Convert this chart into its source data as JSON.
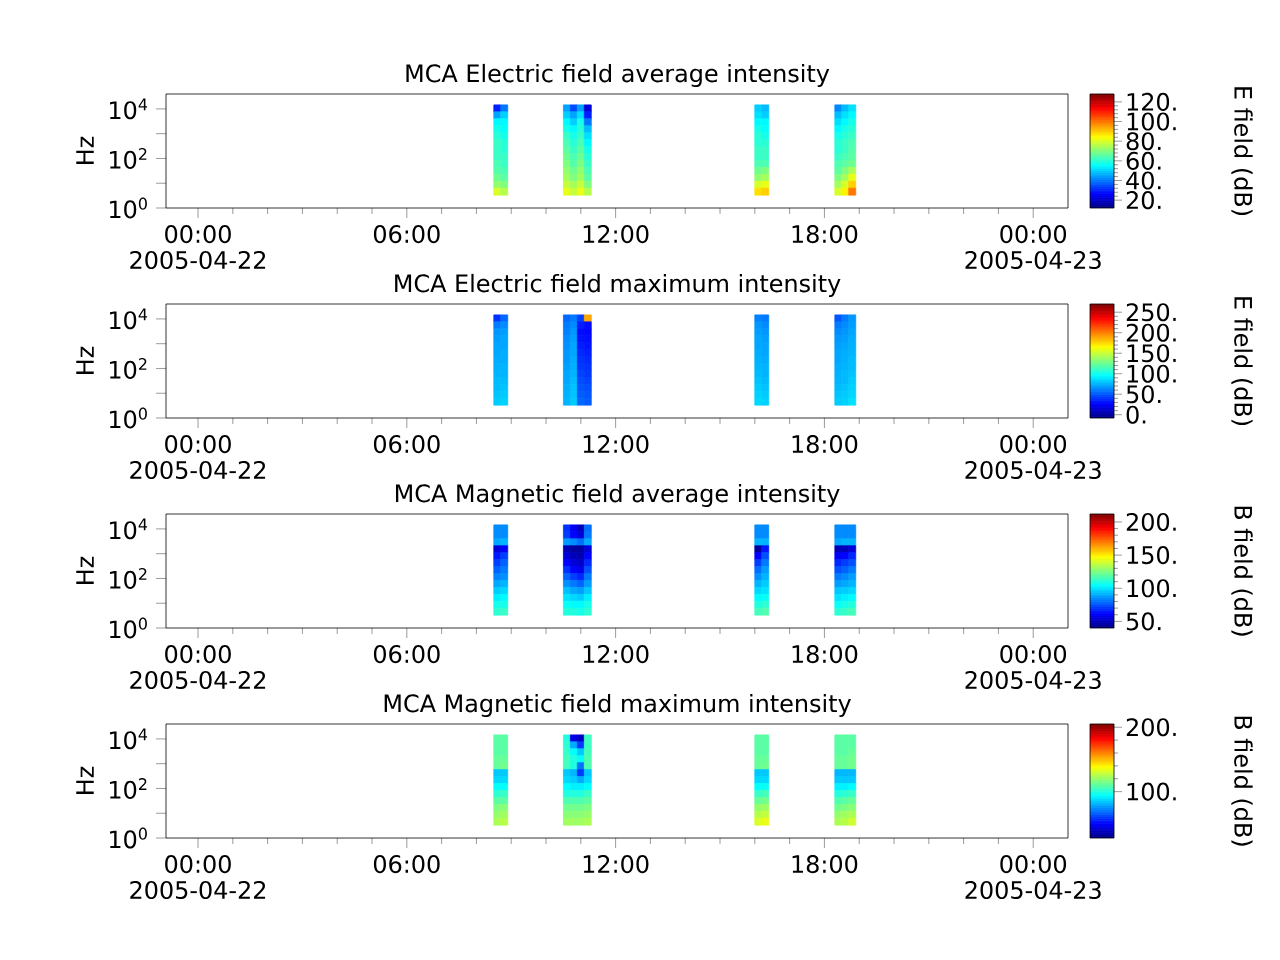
{
  "chart_data": [
    {
      "type": "scatter",
      "marker": "square",
      "title": "MCA  Electric field average intensity",
      "ylabel": "Hz",
      "clabel": "E field (dB)",
      "log": true,
      "x": [
        8.6,
        8.8,
        10.6,
        10.8,
        11.0,
        11.2,
        16.1,
        16.3,
        18.4,
        18.6,
        18.8,
        8.6,
        8.8,
        10.6,
        10.8,
        11.0,
        11.2,
        16.1,
        16.3,
        18.4,
        18.6,
        18.8,
        8.6,
        8.8,
        10.6,
        10.8,
        11.0,
        11.2,
        16.1,
        16.3,
        18.4,
        18.6,
        18.8,
        8.6,
        8.8,
        10.6,
        10.8,
        11.0,
        11.2,
        16.1,
        16.3,
        18.4,
        18.6,
        18.8,
        8.6,
        8.8,
        10.6,
        10.8,
        11.0,
        11.2,
        16.1,
        16.3,
        18.4,
        18.6,
        18.8,
        8.6,
        8.8,
        10.6,
        10.8,
        11.0,
        11.2,
        16.1,
        16.3,
        18.4,
        18.6,
        18.8,
        8.6,
        8.8,
        10.6,
        10.8,
        11.0,
        11.2,
        16.1,
        16.3,
        18.4,
        18.6,
        18.8,
        8.6,
        8.8,
        10.6,
        10.8,
        11.0,
        11.2,
        16.1,
        16.3,
        18.4,
        18.6,
        18.8,
        8.6,
        8.8,
        10.6,
        10.8,
        11.0,
        11.2,
        16.1,
        16.3,
        18.4,
        18.6,
        18.8,
        8.6,
        8.8,
        10.6,
        10.8,
        11.0,
        11.2,
        16.1,
        16.3,
        18.4,
        18.6,
        18.8,
        8.6,
        8.8,
        10.6,
        10.8,
        11.0,
        11.2,
        16.1,
        16.3,
        18.4,
        18.6,
        18.8,
        8.6,
        8.8,
        10.6,
        10.8,
        11.0,
        11.2,
        16.1,
        16.3,
        18.4,
        18.6,
        18.8,
        8.6,
        8.8,
        10.6,
        10.8,
        11.0,
        11.2,
        16.1,
        16.3,
        18.4,
        18.6,
        18.8
      ],
      "values": [
        10500,
        10500,
        10500,
        10500,
        10500,
        10500,
        10500,
        10500,
        10500,
        10500,
        10500,
        5500,
        5500,
        5500,
        5500,
        5500,
        5500,
        5500,
        5500,
        5500,
        5500,
        5500,
        2880,
        2880,
        2880,
        2880,
        2880,
        2880,
        2880,
        2880,
        2880,
        2880,
        2880,
        1510,
        1510,
        1510,
        1510,
        1510,
        1510,
        1510,
        1510,
        1510,
        1510,
        1510,
        794,
        794,
        794,
        794,
        794,
        794,
        794,
        794,
        794,
        794,
        794,
        417,
        417,
        417,
        417,
        417,
        417,
        417,
        417,
        417,
        417,
        417,
        219,
        219,
        219,
        219,
        219,
        219,
        219,
        219,
        219,
        219,
        219,
        115,
        115,
        115,
        115,
        115,
        115,
        115,
        115,
        115,
        115,
        115,
        60.3,
        60.3,
        60.3,
        60.3,
        60.3,
        60.3,
        60.3,
        60.3,
        60.3,
        60.3,
        60.3,
        31.6,
        31.6,
        31.6,
        31.6,
        31.6,
        31.6,
        31.6,
        31.6,
        31.6,
        31.6,
        31.6,
        16.6,
        16.6,
        16.6,
        16.6,
        16.6,
        16.6,
        16.6,
        16.6,
        16.6,
        16.6,
        16.6,
        8.71,
        8.71,
        8.71,
        8.71,
        8.71,
        8.71,
        8.71,
        8.71,
        8.71,
        8.71,
        8.71,
        4.57,
        4.57,
        4.57,
        4.57,
        4.57,
        4.57,
        4.57,
        4.57,
        4.57,
        4.57,
        4.57
      ],
      "cvalues": [
        30,
        40,
        45,
        35,
        45,
        22,
        50,
        48,
        42,
        48,
        52,
        45,
        50,
        50,
        45,
        52,
        30,
        52,
        50,
        48,
        52,
        55,
        55,
        55,
        55,
        50,
        58,
        40,
        55,
        55,
        52,
        55,
        58,
        58,
        56,
        58,
        55,
        60,
        48,
        58,
        56,
        55,
        58,
        60,
        60,
        58,
        62,
        58,
        62,
        52,
        60,
        58,
        58,
        60,
        62,
        62,
        60,
        64,
        60,
        64,
        55,
        60,
        60,
        60,
        62,
        64,
        62,
        60,
        66,
        62,
        66,
        58,
        62,
        62,
        60,
        62,
        65,
        62,
        62,
        68,
        64,
        68,
        60,
        62,
        62,
        62,
        64,
        66,
        64,
        62,
        70,
        65,
        70,
        62,
        64,
        64,
        64,
        66,
        68,
        65,
        64,
        72,
        68,
        72,
        64,
        68,
        70,
        66,
        70,
        75,
        68,
        66,
        74,
        70,
        74,
        66,
        72,
        74,
        70,
        74,
        82,
        72,
        70,
        78,
        74,
        78,
        70,
        80,
        82,
        74,
        80,
        90,
        80,
        76,
        82,
        78,
        82,
        76,
        88,
        90,
        80,
        86,
        100
      ],
      "xlim": [
        -0.92,
        25.0
      ],
      "ylim": [
        1,
        40000
      ],
      "xticks": [
        {
          "value": 0,
          "label": "00:00 2005-04-22"
        },
        {
          "value": 6,
          "label": "06:00"
        },
        {
          "value": 12,
          "label": "12:00"
        },
        {
          "value": 18,
          "label": "18:00"
        },
        {
          "value": 24,
          "label": "00:00 2005-04-23"
        }
      ],
      "yticks": [
        {
          "value": 1,
          "label": "10$^{0}$"
        },
        {
          "value": 10,
          "label": null
        },
        {
          "value": 100,
          "label": "10$^{2}$"
        },
        {
          "value": 1000,
          "label": null
        },
        {
          "value": 10000,
          "label": "10$^{4}$"
        }
      ],
      "clim": [
        12,
        128
      ],
      "cticks": [
        {
          "value": 20,
          "label": "20."
        },
        {
          "value": 40,
          "label": "40."
        },
        {
          "value": 60,
          "label": "60."
        },
        {
          "value": 80,
          "label": "80."
        },
        {
          "value": 100,
          "label": "100."
        },
        {
          "value": 120,
          "label": "120."
        }
      ]
    },
    {
      "type": "scatter",
      "marker": "square",
      "title": "MCA  Electric field maximum intensity",
      "ylabel": "Hz",
      "clabel": "E field (dB)",
      "log": true,
      "x": [
        8.6,
        8.8,
        10.6,
        10.8,
        11.0,
        11.2,
        16.1,
        16.3,
        18.4,
        18.6,
        18.8,
        8.6,
        8.8,
        10.6,
        10.8,
        11.0,
        11.2,
        16.1,
        16.3,
        18.4,
        18.6,
        18.8,
        8.6,
        8.8,
        10.6,
        10.8,
        11.0,
        11.2,
        16.1,
        16.3,
        18.4,
        18.6,
        18.8,
        8.6,
        8.8,
        10.6,
        10.8,
        11.0,
        11.2,
        16.1,
        16.3,
        18.4,
        18.6,
        18.8,
        8.6,
        8.8,
        10.6,
        10.8,
        11.0,
        11.2,
        16.1,
        16.3,
        18.4,
        18.6,
        18.8,
        8.6,
        8.8,
        10.6,
        10.8,
        11.0,
        11.2,
        16.1,
        16.3,
        18.4,
        18.6,
        18.8,
        8.6,
        8.8,
        10.6,
        10.8,
        11.0,
        11.2,
        16.1,
        16.3,
        18.4,
        18.6,
        18.8,
        8.6,
        8.8,
        10.6,
        10.8,
        11.0,
        11.2,
        16.1,
        16.3,
        18.4,
        18.6,
        18.8,
        8.6,
        8.8,
        10.6,
        10.8,
        11.0,
        11.2,
        16.1,
        16.3,
        18.4,
        18.6,
        18.8,
        8.6,
        8.8,
        10.6,
        10.8,
        11.0,
        11.2,
        16.1,
        16.3,
        18.4,
        18.6,
        18.8,
        8.6,
        8.8,
        10.6,
        10.8,
        11.0,
        11.2,
        16.1,
        16.3,
        18.4,
        18.6,
        18.8,
        8.6,
        8.8,
        10.6,
        10.8,
        11.0,
        11.2,
        16.1,
        16.3,
        18.4,
        18.6,
        18.8,
        8.6,
        8.8,
        10.6,
        10.8,
        11.0,
        11.2,
        16.1,
        16.3,
        18.4,
        18.6,
        18.8
      ],
      "values": [
        10500,
        10500,
        10500,
        10500,
        10500,
        10500,
        10500,
        10500,
        10500,
        10500,
        10500,
        5500,
        5500,
        5500,
        5500,
        5500,
        5500,
        5500,
        5500,
        5500,
        5500,
        5500,
        2880,
        2880,
        2880,
        2880,
        2880,
        2880,
        2880,
        2880,
        2880,
        2880,
        2880,
        1510,
        1510,
        1510,
        1510,
        1510,
        1510,
        1510,
        1510,
        1510,
        1510,
        1510,
        794,
        794,
        794,
        794,
        794,
        794,
        794,
        794,
        794,
        794,
        794,
        417,
        417,
        417,
        417,
        417,
        417,
        417,
        417,
        417,
        417,
        417,
        219,
        219,
        219,
        219,
        219,
        219,
        219,
        219,
        219,
        219,
        219,
        115,
        115,
        115,
        115,
        115,
        115,
        115,
        115,
        115,
        115,
        115,
        60.3,
        60.3,
        60.3,
        60.3,
        60.3,
        60.3,
        60.3,
        60.3,
        60.3,
        60.3,
        60.3,
        31.6,
        31.6,
        31.6,
        31.6,
        31.6,
        31.6,
        31.6,
        31.6,
        31.6,
        31.6,
        31.6,
        16.6,
        16.6,
        16.6,
        16.6,
        16.6,
        16.6,
        16.6,
        16.6,
        16.6,
        16.6,
        16.6,
        8.71,
        8.71,
        8.71,
        8.71,
        8.71,
        8.71,
        8.71,
        8.71,
        8.71,
        8.71,
        8.71,
        4.57,
        4.57,
        4.57,
        4.57,
        4.57,
        4.57,
        4.57,
        4.57,
        4.57,
        4.57,
        4.57
      ],
      "cvalues": [
        40,
        55,
        55,
        60,
        45,
        190,
        62,
        60,
        50,
        60,
        68,
        60,
        65,
        60,
        65,
        35,
        30,
        68,
        65,
        60,
        65,
        70,
        68,
        70,
        62,
        68,
        30,
        28,
        70,
        68,
        65,
        68,
        72,
        70,
        72,
        65,
        70,
        32,
        30,
        72,
        70,
        68,
        70,
        74,
        72,
        72,
        66,
        72,
        35,
        32,
        72,
        72,
        70,
        72,
        75,
        72,
        74,
        68,
        72,
        38,
        35,
        74,
        72,
        72,
        74,
        76,
        74,
        74,
        68,
        74,
        40,
        38,
        75,
        74,
        72,
        75,
        78,
        75,
        76,
        70,
        75,
        42,
        40,
        76,
        76,
        74,
        76,
        78,
        76,
        76,
        72,
        76,
        45,
        42,
        78,
        76,
        75,
        78,
        80,
        78,
        78,
        72,
        78,
        48,
        45,
        80,
        78,
        76,
        78,
        82,
        78,
        80,
        74,
        80,
        50,
        48,
        82,
        80,
        78,
        80,
        84,
        80,
        82,
        75,
        80,
        52,
        50,
        84,
        82,
        80,
        82,
        85,
        82,
        84,
        76,
        82,
        55,
        52,
        86,
        84,
        82,
        84,
        88
      ],
      "xlim": [
        -0.92,
        25.0
      ],
      "ylim": [
        1,
        40000
      ],
      "xticks": [
        {
          "value": 0,
          "label": "00:00 2005-04-22"
        },
        {
          "value": 6,
          "label": "06:00"
        },
        {
          "value": 12,
          "label": "12:00"
        },
        {
          "value": 18,
          "label": "18:00"
        },
        {
          "value": 24,
          "label": "00:00 2005-04-23"
        }
      ],
      "yticks": [
        {
          "value": 1,
          "label": "10$^{0}$"
        },
        {
          "value": 10,
          "label": null
        },
        {
          "value": 100,
          "label": "10$^{2}$"
        },
        {
          "value": 1000,
          "label": null
        },
        {
          "value": 10000,
          "label": "10$^{4}$"
        }
      ],
      "clim": [
        -8,
        270
      ],
      "cticks": [
        {
          "value": 0,
          "label": "0."
        },
        {
          "value": 50,
          "label": "50."
        },
        {
          "value": 100,
          "label": "100."
        },
        {
          "value": 150,
          "label": "150."
        },
        {
          "value": 200,
          "label": "200."
        },
        {
          "value": 250,
          "label": "250."
        }
      ]
    },
    {
      "type": "scatter",
      "marker": "square",
      "title": "MCA  Magnetic field average intensity",
      "ylabel": "Hz",
      "clabel": "B field (dB)",
      "log": true,
      "x": [
        8.6,
        8.8,
        10.6,
        10.8,
        11.0,
        11.2,
        16.1,
        16.3,
        18.4,
        18.6,
        18.8,
        8.6,
        8.8,
        10.6,
        10.8,
        11.0,
        11.2,
        16.1,
        16.3,
        18.4,
        18.6,
        18.8,
        8.6,
        8.8,
        10.6,
        10.8,
        11.0,
        11.2,
        16.1,
        16.3,
        18.4,
        18.6,
        18.8,
        8.6,
        8.8,
        10.6,
        10.8,
        11.0,
        11.2,
        16.1,
        16.3,
        18.4,
        18.6,
        18.8,
        8.6,
        8.8,
        10.6,
        10.8,
        11.0,
        11.2,
        16.1,
        16.3,
        18.4,
        18.6,
        18.8,
        8.6,
        8.8,
        10.6,
        10.8,
        11.0,
        11.2,
        16.1,
        16.3,
        18.4,
        18.6,
        18.8,
        8.6,
        8.8,
        10.6,
        10.8,
        11.0,
        11.2,
        16.1,
        16.3,
        18.4,
        18.6,
        18.8,
        8.6,
        8.8,
        10.6,
        10.8,
        11.0,
        11.2,
        16.1,
        16.3,
        18.4,
        18.6,
        18.8,
        8.6,
        8.8,
        10.6,
        10.8,
        11.0,
        11.2,
        16.1,
        16.3,
        18.4,
        18.6,
        18.8,
        8.6,
        8.8,
        10.6,
        10.8,
        11.0,
        11.2,
        16.1,
        16.3,
        18.4,
        18.6,
        18.8,
        8.6,
        8.8,
        10.6,
        10.8,
        11.0,
        11.2,
        16.1,
        16.3,
        18.4,
        18.6,
        18.8,
        8.6,
        8.8,
        10.6,
        10.8,
        11.0,
        11.2,
        16.1,
        16.3,
        18.4,
        18.6,
        18.8,
        8.6,
        8.8,
        10.6,
        10.8,
        11.0,
        11.2,
        16.1,
        16.3,
        18.4,
        18.6,
        18.8
      ],
      "values": [
        10500,
        10500,
        10500,
        10500,
        10500,
        10500,
        10500,
        10500,
        10500,
        10500,
        10500,
        5500,
        5500,
        5500,
        5500,
        5500,
        5500,
        5500,
        5500,
        5500,
        5500,
        5500,
        2880,
        2880,
        2880,
        2880,
        2880,
        2880,
        2880,
        2880,
        2880,
        2880,
        2880,
        1510,
        1510,
        1510,
        1510,
        1510,
        1510,
        1510,
        1510,
        1510,
        1510,
        1510,
        794,
        794,
        794,
        794,
        794,
        794,
        794,
        794,
        794,
        794,
        794,
        417,
        417,
        417,
        417,
        417,
        417,
        417,
        417,
        417,
        417,
        417,
        219,
        219,
        219,
        219,
        219,
        219,
        219,
        219,
        219,
        219,
        219,
        115,
        115,
        115,
        115,
        115,
        115,
        115,
        115,
        115,
        115,
        115,
        60.3,
        60.3,
        60.3,
        60.3,
        60.3,
        60.3,
        60.3,
        60.3,
        60.3,
        60.3,
        60.3,
        31.6,
        31.6,
        31.6,
        31.6,
        31.6,
        31.6,
        31.6,
        31.6,
        31.6,
        31.6,
        31.6,
        16.6,
        16.6,
        16.6,
        16.6,
        16.6,
        16.6,
        16.6,
        16.6,
        16.6,
        16.6,
        16.6,
        8.71,
        8.71,
        8.71,
        8.71,
        8.71,
        8.71,
        8.71,
        8.71,
        8.71,
        8.71,
        8.71,
        4.57,
        4.57,
        4.57,
        4.57,
        4.57,
        4.57,
        4.57,
        4.57,
        4.57,
        4.57,
        4.57
      ],
      "cvalues": [
        85,
        85,
        70,
        60,
        50,
        80,
        85,
        85,
        85,
        85,
        85,
        85,
        85,
        72,
        62,
        55,
        82,
        85,
        85,
        85,
        85,
        85,
        90,
        92,
        88,
        85,
        80,
        90,
        92,
        92,
        90,
        92,
        92,
        55,
        60,
        50,
        45,
        45,
        55,
        45,
        65,
        50,
        50,
        55,
        65,
        72,
        55,
        50,
        48,
        62,
        62,
        75,
        60,
        62,
        68,
        72,
        78,
        62,
        55,
        52,
        68,
        72,
        82,
        68,
        72,
        75,
        78,
        82,
        70,
        62,
        58,
        75,
        80,
        88,
        75,
        78,
        82,
        84,
        86,
        78,
        72,
        68,
        82,
        86,
        92,
        82,
        85,
        88,
        90,
        92,
        86,
        82,
        78,
        88,
        92,
        96,
        88,
        90,
        92,
        96,
        98,
        94,
        90,
        88,
        95,
        98,
        100,
        95,
        96,
        98,
        102,
        104,
        100,
        98,
        96,
        102,
        104,
        106,
        100,
        102,
        104,
        108,
        108,
        106,
        104,
        104,
        108,
        110,
        112,
        106,
        108,
        110,
        112,
        114,
        110,
        110,
        108,
        112,
        116,
        118,
        112,
        114,
        116
      ],
      "xlim": [
        -0.92,
        25.0
      ],
      "ylim": [
        1,
        40000
      ],
      "xticks": [
        {
          "value": 0,
          "label": "00:00 2005-04-22"
        },
        {
          "value": 6,
          "label": "06:00"
        },
        {
          "value": 12,
          "label": "12:00"
        },
        {
          "value": 18,
          "label": "18:00"
        },
        {
          "value": 24,
          "label": "00:00 2005-04-23"
        }
      ],
      "yticks": [
        {
          "value": 1,
          "label": "10$^{0}$"
        },
        {
          "value": 10,
          "label": null
        },
        {
          "value": 100,
          "label": "10$^{2}$"
        },
        {
          "value": 1000,
          "label": null
        },
        {
          "value": 10000,
          "label": "10$^{4}$"
        }
      ],
      "clim": [
        40,
        212
      ],
      "cticks": [
        {
          "value": 50,
          "label": "50."
        },
        {
          "value": 100,
          "label": "100."
        },
        {
          "value": 150,
          "label": "150."
        },
        {
          "value": 200,
          "label": "200."
        }
      ]
    },
    {
      "type": "scatter",
      "marker": "square",
      "title": "MCA  Magnetic field maximum intensity",
      "ylabel": "Hz",
      "clabel": "B field (dB)",
      "log": true,
      "x": [
        8.6,
        8.8,
        10.6,
        10.8,
        11.0,
        11.2,
        16.1,
        16.3,
        18.4,
        18.6,
        18.8,
        8.6,
        8.8,
        10.6,
        10.8,
        11.0,
        11.2,
        16.1,
        16.3,
        18.4,
        18.6,
        18.8,
        8.6,
        8.8,
        10.6,
        10.8,
        11.0,
        11.2,
        16.1,
        16.3,
        18.4,
        18.6,
        18.8,
        8.6,
        8.8,
        10.6,
        10.8,
        11.0,
        11.2,
        16.1,
        16.3,
        18.4,
        18.6,
        18.8,
        8.6,
        8.8,
        10.6,
        10.8,
        11.0,
        11.2,
        16.1,
        16.3,
        18.4,
        18.6,
        18.8,
        8.6,
        8.8,
        10.6,
        10.8,
        11.0,
        11.2,
        16.1,
        16.3,
        18.4,
        18.6,
        18.8,
        8.6,
        8.8,
        10.6,
        10.8,
        11.0,
        11.2,
        16.1,
        16.3,
        18.4,
        18.6,
        18.8,
        8.6,
        8.8,
        10.6,
        10.8,
        11.0,
        11.2,
        16.1,
        16.3,
        18.4,
        18.6,
        18.8,
        8.6,
        8.8,
        10.6,
        10.8,
        11.0,
        11.2,
        16.1,
        16.3,
        18.4,
        18.6,
        18.8,
        8.6,
        8.8,
        10.6,
        10.8,
        11.0,
        11.2,
        16.1,
        16.3,
        18.4,
        18.6,
        18.8,
        8.6,
        8.8,
        10.6,
        10.8,
        11.0,
        11.2,
        16.1,
        16.3,
        18.4,
        18.6,
        18.8,
        8.6,
        8.8,
        10.6,
        10.8,
        11.0,
        11.2,
        16.1,
        16.3,
        18.4,
        18.6,
        18.8,
        8.6,
        8.8,
        10.6,
        10.8,
        11.0,
        11.2,
        16.1,
        16.3,
        18.4,
        18.6,
        18.8
      ],
      "values": [
        10500,
        10500,
        10500,
        10500,
        10500,
        10500,
        10500,
        10500,
        10500,
        10500,
        10500,
        5500,
        5500,
        5500,
        5500,
        5500,
        5500,
        5500,
        5500,
        5500,
        5500,
        5500,
        2880,
        2880,
        2880,
        2880,
        2880,
        2880,
        2880,
        2880,
        2880,
        2880,
        2880,
        1510,
        1510,
        1510,
        1510,
        1510,
        1510,
        1510,
        1510,
        1510,
        1510,
        1510,
        794,
        794,
        794,
        794,
        794,
        794,
        794,
        794,
        794,
        794,
        794,
        417,
        417,
        417,
        417,
        417,
        417,
        417,
        417,
        417,
        417,
        417,
        219,
        219,
        219,
        219,
        219,
        219,
        219,
        219,
        219,
        219,
        219,
        115,
        115,
        115,
        115,
        115,
        115,
        115,
        115,
        115,
        115,
        115,
        60.3,
        60.3,
        60.3,
        60.3,
        60.3,
        60.3,
        60.3,
        60.3,
        60.3,
        60.3,
        60.3,
        31.6,
        31.6,
        31.6,
        31.6,
        31.6,
        31.6,
        31.6,
        31.6,
        31.6,
        31.6,
        31.6,
        16.6,
        16.6,
        16.6,
        16.6,
        16.6,
        16.6,
        16.6,
        16.6,
        16.6,
        16.6,
        16.6,
        8.71,
        8.71,
        8.71,
        8.71,
        8.71,
        8.71,
        8.71,
        8.71,
        8.71,
        8.71,
        8.71,
        4.57,
        4.57,
        4.57,
        4.57,
        4.57,
        4.57,
        4.57,
        4.57,
        4.57,
        4.57,
        4.57
      ],
      "cvalues": [
        110,
        110,
        100,
        45,
        40,
        105,
        110,
        110,
        110,
        110,
        110,
        110,
        110,
        102,
        80,
        60,
        105,
        110,
        110,
        110,
        110,
        110,
        110,
        110,
        104,
        95,
        85,
        106,
        110,
        110,
        110,
        110,
        112,
        112,
        112,
        106,
        100,
        95,
        108,
        112,
        112,
        112,
        112,
        114,
        112,
        114,
        106,
        100,
        70,
        108,
        112,
        114,
        112,
        112,
        114,
        85,
        85,
        85,
        82,
        60,
        85,
        85,
        85,
        82,
        82,
        82,
        88,
        88,
        88,
        86,
        80,
        88,
        88,
        88,
        85,
        85,
        85,
        95,
        95,
        94,
        92,
        92,
        95,
        95,
        96,
        92,
        92,
        94,
        102,
        104,
        100,
        100,
        100,
        104,
        104,
        106,
        100,
        102,
        104,
        110,
        110,
        108,
        108,
        108,
        110,
        112,
        114,
        108,
        110,
        112,
        116,
        118,
        114,
        114,
        114,
        116,
        120,
        122,
        114,
        116,
        118,
        120,
        122,
        118,
        118,
        118,
        120,
        126,
        128,
        120,
        122,
        124,
        124,
        126,
        122,
        122,
        122,
        124,
        132,
        135,
        124,
        126,
        130
      ],
      "xlim": [
        -0.92,
        25.0
      ],
      "ylim": [
        1,
        40000
      ],
      "xticks": [
        {
          "value": 0,
          "label": "00:00 2005-04-22"
        },
        {
          "value": 6,
          "label": "06:00"
        },
        {
          "value": 12,
          "label": "12:00"
        },
        {
          "value": 18,
          "label": "18:00"
        },
        {
          "value": 24,
          "label": "00:00 2005-04-23"
        }
      ],
      "yticks": [
        {
          "value": 1,
          "label": "10$^{0}$"
        },
        {
          "value": 10,
          "label": null
        },
        {
          "value": 100,
          "label": "10$^{2}$"
        },
        {
          "value": 1000,
          "label": null
        },
        {
          "value": 10000,
          "label": "10$^{4}$"
        }
      ],
      "clim": [
        28,
        205
      ],
      "cticks": [
        {
          "value": 100,
          "label": "100."
        },
        {
          "value": 200,
          "label": "200."
        }
      ]
    }
  ]
}
